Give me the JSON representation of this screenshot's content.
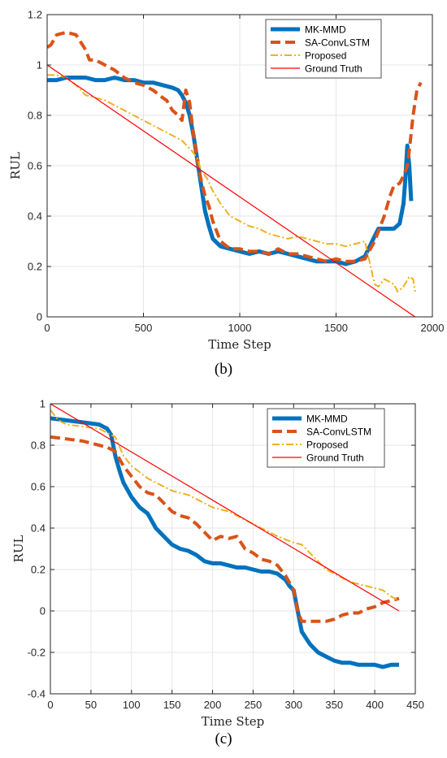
{
  "chart_data": [
    {
      "type": "line",
      "caption": "(b)",
      "xlabel": "Time Step",
      "ylabel": "RUL",
      "xlim": [
        0,
        2000
      ],
      "ylim": [
        0,
        1.2
      ],
      "xticks": [
        0,
        500,
        1000,
        1500,
        2000
      ],
      "yticks": [
        0,
        0.2,
        0.4,
        0.6,
        0.8,
        1,
        1.2
      ],
      "grid": true,
      "legend_position": "top-right",
      "series": [
        {
          "name": "MK-MMD",
          "color": "#0072BD",
          "style": "solid-thick",
          "x": [
            0,
            50,
            100,
            150,
            200,
            250,
            300,
            350,
            400,
            450,
            500,
            550,
            600,
            650,
            680,
            700,
            720,
            740,
            760,
            780,
            800,
            820,
            840,
            860,
            900,
            950,
            1000,
            1050,
            1100,
            1150,
            1200,
            1250,
            1300,
            1350,
            1400,
            1450,
            1500,
            1550,
            1600,
            1650,
            1700,
            1720,
            1750,
            1800,
            1830,
            1850,
            1860,
            1870,
            1880,
            1890
          ],
          "y": [
            0.94,
            0.94,
            0.95,
            0.95,
            0.95,
            0.94,
            0.94,
            0.95,
            0.94,
            0.94,
            0.93,
            0.93,
            0.92,
            0.91,
            0.9,
            0.88,
            0.85,
            0.8,
            0.72,
            0.62,
            0.52,
            0.42,
            0.36,
            0.31,
            0.28,
            0.27,
            0.26,
            0.25,
            0.26,
            0.25,
            0.26,
            0.25,
            0.24,
            0.23,
            0.22,
            0.22,
            0.22,
            0.21,
            0.22,
            0.24,
            0.32,
            0.35,
            0.35,
            0.35,
            0.37,
            0.45,
            0.55,
            0.68,
            0.6,
            0.46
          ]
        },
        {
          "name": "SA-ConvLSTM",
          "color": "#D95319",
          "style": "dashed-thick",
          "x": [
            0,
            20,
            50,
            100,
            150,
            200,
            220,
            250,
            300,
            350,
            400,
            450,
            500,
            550,
            600,
            620,
            650,
            680,
            700,
            720,
            740,
            760,
            780,
            800,
            820,
            840,
            860,
            900,
            950,
            1000,
            1050,
            1100,
            1150,
            1200,
            1250,
            1300,
            1350,
            1400,
            1450,
            1500,
            1550,
            1600,
            1650,
            1700,
            1750,
            1780,
            1800,
            1830,
            1850,
            1870,
            1880,
            1900,
            1920,
            1940
          ],
          "y": [
            1.07,
            1.08,
            1.12,
            1.13,
            1.12,
            1.06,
            1.02,
            1.02,
            1.0,
            0.98,
            0.95,
            0.93,
            0.92,
            0.9,
            0.87,
            0.86,
            0.82,
            0.8,
            0.78,
            0.9,
            0.85,
            0.72,
            0.62,
            0.54,
            0.48,
            0.44,
            0.38,
            0.3,
            0.27,
            0.27,
            0.26,
            0.26,
            0.25,
            0.27,
            0.25,
            0.25,
            0.24,
            0.23,
            0.22,
            0.23,
            0.22,
            0.22,
            0.23,
            0.3,
            0.4,
            0.48,
            0.52,
            0.53,
            0.56,
            0.6,
            0.66,
            0.8,
            0.9,
            0.93
          ]
        },
        {
          "name": "Proposed",
          "color": "#EDB120",
          "style": "dashdot",
          "x": [
            0,
            50,
            100,
            150,
            200,
            250,
            300,
            350,
            400,
            450,
            500,
            550,
            600,
            650,
            700,
            750,
            780,
            800,
            830,
            860,
            900,
            950,
            1000,
            1050,
            1100,
            1150,
            1200,
            1250,
            1300,
            1350,
            1400,
            1450,
            1500,
            1550,
            1600,
            1650,
            1700,
            1720,
            1750,
            1800,
            1820,
            1850,
            1880,
            1900,
            1910
          ],
          "y": [
            0.96,
            0.96,
            0.95,
            0.92,
            0.88,
            0.87,
            0.86,
            0.84,
            0.82,
            0.8,
            0.78,
            0.76,
            0.74,
            0.72,
            0.7,
            0.66,
            0.63,
            0.58,
            0.55,
            0.5,
            0.45,
            0.4,
            0.38,
            0.36,
            0.35,
            0.33,
            0.32,
            0.31,
            0.32,
            0.31,
            0.3,
            0.29,
            0.29,
            0.28,
            0.29,
            0.3,
            0.13,
            0.12,
            0.15,
            0.13,
            0.1,
            0.12,
            0.16,
            0.15,
            0.1
          ]
        },
        {
          "name": "Ground Truth",
          "color": "#FF0000",
          "style": "solid-thin",
          "x": [
            0,
            1910
          ],
          "y": [
            1.0,
            0.0
          ]
        }
      ]
    },
    {
      "type": "line",
      "caption": "(c)",
      "xlabel": "Time Step",
      "ylabel": "RUL",
      "xlim": [
        0,
        450
      ],
      "ylim": [
        -0.4,
        1
      ],
      "xticks": [
        0,
        50,
        100,
        150,
        200,
        250,
        300,
        350,
        400,
        450
      ],
      "yticks": [
        -0.4,
        -0.2,
        0,
        0.2,
        0.4,
        0.6,
        0.8,
        1
      ],
      "grid": true,
      "legend_position": "top-right",
      "series": [
        {
          "name": "MK-MMD",
          "color": "#0072BD",
          "style": "solid-thick",
          "x": [
            0,
            20,
            40,
            60,
            70,
            75,
            80,
            85,
            90,
            100,
            110,
            120,
            130,
            140,
            150,
            160,
            170,
            180,
            190,
            200,
            210,
            220,
            230,
            240,
            250,
            260,
            270,
            280,
            290,
            295,
            300,
            305,
            310,
            320,
            330,
            340,
            350,
            360,
            370,
            380,
            390,
            400,
            410,
            420,
            430
          ],
          "y": [
            0.93,
            0.92,
            0.91,
            0.9,
            0.88,
            0.85,
            0.75,
            0.68,
            0.62,
            0.55,
            0.5,
            0.47,
            0.4,
            0.36,
            0.32,
            0.3,
            0.29,
            0.27,
            0.24,
            0.23,
            0.23,
            0.22,
            0.21,
            0.21,
            0.2,
            0.19,
            0.19,
            0.18,
            0.15,
            0.12,
            0.1,
            0.0,
            -0.1,
            -0.16,
            -0.2,
            -0.22,
            -0.24,
            -0.25,
            -0.25,
            -0.26,
            -0.26,
            -0.26,
            -0.27,
            -0.26,
            -0.26
          ]
        },
        {
          "name": "SA-ConvLSTM",
          "color": "#D95319",
          "style": "dashed-thick",
          "x": [
            0,
            20,
            40,
            60,
            70,
            80,
            90,
            100,
            110,
            120,
            130,
            140,
            150,
            160,
            170,
            180,
            190,
            200,
            210,
            220,
            230,
            240,
            250,
            260,
            270,
            280,
            290,
            300,
            305,
            310,
            320,
            330,
            340,
            350,
            360,
            370,
            380,
            390,
            400,
            410,
            420,
            430
          ],
          "y": [
            0.84,
            0.83,
            0.82,
            0.8,
            0.79,
            0.77,
            0.7,
            0.65,
            0.6,
            0.57,
            0.56,
            0.52,
            0.48,
            0.46,
            0.45,
            0.42,
            0.38,
            0.34,
            0.36,
            0.35,
            0.36,
            0.3,
            0.28,
            0.25,
            0.24,
            0.22,
            0.17,
            0.1,
            0.0,
            -0.05,
            -0.05,
            -0.05,
            -0.05,
            -0.04,
            -0.02,
            -0.01,
            -0.01,
            0.01,
            0.02,
            0.04,
            0.05,
            0.06
          ]
        },
        {
          "name": "Proposed",
          "color": "#EDB120",
          "style": "dashdot",
          "x": [
            0,
            10,
            20,
            40,
            60,
            70,
            80,
            90,
            100,
            110,
            120,
            130,
            140,
            150,
            160,
            170,
            180,
            190,
            200,
            220,
            240,
            260,
            280,
            300,
            310,
            320,
            330,
            340,
            350,
            360,
            370,
            380,
            390,
            400,
            410,
            420,
            430
          ],
          "y": [
            0.97,
            0.92,
            0.9,
            0.89,
            0.88,
            0.86,
            0.84,
            0.75,
            0.7,
            0.67,
            0.64,
            0.62,
            0.6,
            0.58,
            0.57,
            0.56,
            0.54,
            0.52,
            0.5,
            0.48,
            0.44,
            0.4,
            0.36,
            0.33,
            0.32,
            0.28,
            0.24,
            0.2,
            0.18,
            0.16,
            0.14,
            0.13,
            0.12,
            0.11,
            0.1,
            0.07,
            0.05
          ]
        },
        {
          "name": "Ground Truth",
          "color": "#FF0000",
          "style": "solid-thin",
          "x": [
            0,
            430
          ],
          "y": [
            1.0,
            0.0
          ]
        }
      ]
    }
  ]
}
